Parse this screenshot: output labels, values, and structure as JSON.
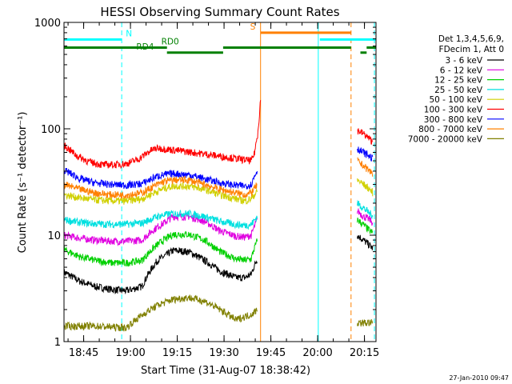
{
  "chart_data": {
    "type": "line",
    "title": "HESSI Observing Summary Count Rates",
    "xlabel": "Start Time (31-Aug-07 18:38:42)",
    "ylabel": "Count Rate (s⁻¹ detector⁻¹)",
    "y_scale": "log",
    "ylim": [
      1,
      1000
    ],
    "xlim_minutes": [
      0,
      100
    ],
    "y_tick_labels": [
      "1",
      "10",
      "100",
      "1000"
    ],
    "x_tick_labels": [
      "18:45",
      "19:00",
      "19:15",
      "19:30",
      "19:45",
      "20:00",
      "20:15"
    ],
    "x_tick_minutes": [
      6.3,
      21.3,
      36.3,
      51.3,
      66.3,
      81.3,
      96.3
    ],
    "legend_header": [
      "Det 1,3,4,5,6,9,",
      "FDecim 1, Att 0"
    ],
    "legend_position": "right",
    "footer": "27-Jan-2010 09:47",
    "series": [
      {
        "name": "3 - 6 keV",
        "color": "#000000",
        "x": [
          0,
          5,
          10,
          15,
          20,
          25,
          30,
          32,
          35,
          40,
          45,
          50,
          55,
          58,
          60,
          62
        ],
        "y": [
          4.5,
          3.7,
          3.3,
          3.1,
          3.0,
          3.3,
          5.8,
          6.3,
          7.2,
          7.0,
          5.8,
          4.6,
          4.0,
          4.0,
          4.3,
          6.0
        ]
      },
      {
        "name": "6 - 12 keV",
        "color": "#e000e0",
        "x": [
          0,
          5,
          10,
          15,
          20,
          25,
          30,
          32,
          35,
          40,
          45,
          50,
          55,
          58,
          60,
          62
        ],
        "y": [
          10.0,
          9.4,
          9.0,
          8.8,
          8.8,
          9.0,
          12,
          13,
          15,
          15,
          13.5,
          11,
          9.8,
          9.6,
          10,
          14
        ]
      },
      {
        "name": "12 - 25 keV",
        "color": "#00d000",
        "x": [
          0,
          5,
          10,
          15,
          20,
          25,
          30,
          32,
          35,
          40,
          45,
          50,
          55,
          58,
          60,
          62
        ],
        "y": [
          7.3,
          6.3,
          5.8,
          5.5,
          5.5,
          5.8,
          8.2,
          9,
          10.2,
          10.2,
          9,
          7,
          6,
          5.8,
          6,
          9
        ]
      },
      {
        "name": "25 - 50 keV",
        "color": "#00e0e0",
        "x": [
          0,
          5,
          10,
          15,
          20,
          25,
          30,
          32,
          35,
          40,
          45,
          50,
          55,
          58,
          60,
          62
        ],
        "y": [
          14,
          13.2,
          12.8,
          12.7,
          12.7,
          13,
          15,
          15.5,
          16,
          16,
          15,
          13.5,
          12.6,
          12.4,
          12.6,
          15
        ]
      },
      {
        "name": "50 - 100 keV",
        "color": "#d0d000",
        "x": [
          0,
          5,
          10,
          15,
          20,
          25,
          30,
          32,
          35,
          40,
          45,
          50,
          55,
          58,
          60,
          62
        ],
        "y": [
          24,
          22.5,
          21.5,
          21,
          21,
          22,
          26,
          27.5,
          29,
          29,
          27,
          24,
          22,
          21,
          22,
          26
        ]
      },
      {
        "name": "100 - 300 keV",
        "color": "#ff0000",
        "x": [
          0,
          4,
          8,
          12,
          16,
          20,
          24,
          28,
          30,
          60,
          61,
          62,
          62.6,
          63
        ],
        "y": [
          70,
          56,
          49,
          46,
          46,
          47,
          52,
          63,
          66,
          50,
          58,
          85,
          130,
          190
        ]
      },
      {
        "name": "300 - 800 keV",
        "color": "#0000ff",
        "x": [
          0,
          5,
          10,
          15,
          20,
          25,
          30,
          32,
          35,
          40,
          45,
          50,
          55,
          58,
          60,
          62
        ],
        "y": [
          41,
          34,
          31,
          30,
          29.5,
          30.5,
          36,
          37,
          38,
          37,
          34,
          31,
          29.5,
          29,
          30,
          41
        ]
      },
      {
        "name": "800 - 7000 keV",
        "color": "#ff8000",
        "x": [
          0,
          5,
          10,
          15,
          20,
          25,
          30,
          32,
          35,
          40,
          45,
          50,
          55,
          58,
          60,
          62
        ],
        "y": [
          30,
          27,
          25,
          24,
          24,
          25,
          30,
          32,
          33,
          33,
          30,
          27,
          25,
          24,
          25,
          30
        ]
      },
      {
        "name": "7000 - 20000 keV",
        "color": "#808000",
        "x": [
          0,
          10,
          20,
          30,
          35,
          40,
          45,
          50,
          55,
          60,
          62
        ],
        "y": [
          1.4,
          1.4,
          1.35,
          2.2,
          2.5,
          2.6,
          2.4,
          2.0,
          1.6,
          1.8,
          2.0
        ]
      }
    ],
    "late_segment": {
      "x": [
        94,
        96,
        98,
        99
      ],
      "values": {
        "3 - 6 keV": [
          10,
          9,
          8,
          7.5
        ],
        "6 - 12 keV": [
          17,
          15,
          14,
          13
        ],
        "12 - 25 keV": [
          14,
          12.5,
          11,
          10.5
        ],
        "25 - 50 keV": [
          20,
          18,
          16,
          15.5
        ],
        "50 - 100 keV": [
          33,
          30,
          27,
          25
        ],
        "100 - 300 keV": [
          97,
          90,
          80,
          75
        ],
        "300 - 800 keV": [
          65,
          60,
          55,
          52
        ],
        "800 - 7000 keV": [
          50,
          45,
          40,
          38
        ],
        "7000 - 20000 keV": [
          1.5,
          1.5,
          1.5,
          1.5
        ]
      }
    },
    "flags": [
      {
        "label": "N",
        "color": "#00ffff",
        "y_value": 690,
        "label_x": 20.8,
        "segments": [
          [
            0,
            18.5
          ],
          [
            82,
            100
          ]
        ]
      },
      {
        "label": "S",
        "color": "#ff8000",
        "y_value": 800,
        "label_x": 60.5,
        "segments": [
          [
            63,
            92
          ]
        ]
      },
      {
        "label": "RD0",
        "color": "#008000",
        "y_value": 580,
        "label_x": 34,
        "segments": [
          [
            0,
            33
          ],
          [
            51,
            92
          ],
          [
            97,
            100
          ]
        ]
      },
      {
        "label": "RD4",
        "color": "#008000",
        "y_value": 520,
        "label_x": 26,
        "segments": [
          [
            33,
            51
          ],
          [
            95,
            97
          ]
        ]
      }
    ],
    "vertical_lines": [
      {
        "x": 0,
        "color": "#00ffff",
        "style": "solid"
      },
      {
        "x": 18.5,
        "color": "#00ffff",
        "style": "dashed"
      },
      {
        "x": 63,
        "color": "#ff8000",
        "style": "solid"
      },
      {
        "x": 81.5,
        "color": "#00ffff",
        "style": "solid"
      },
      {
        "x": 92,
        "color": "#ff8000",
        "style": "dashed"
      },
      {
        "x": 99.5,
        "color": "#00ffff",
        "style": "dashed"
      }
    ]
  }
}
